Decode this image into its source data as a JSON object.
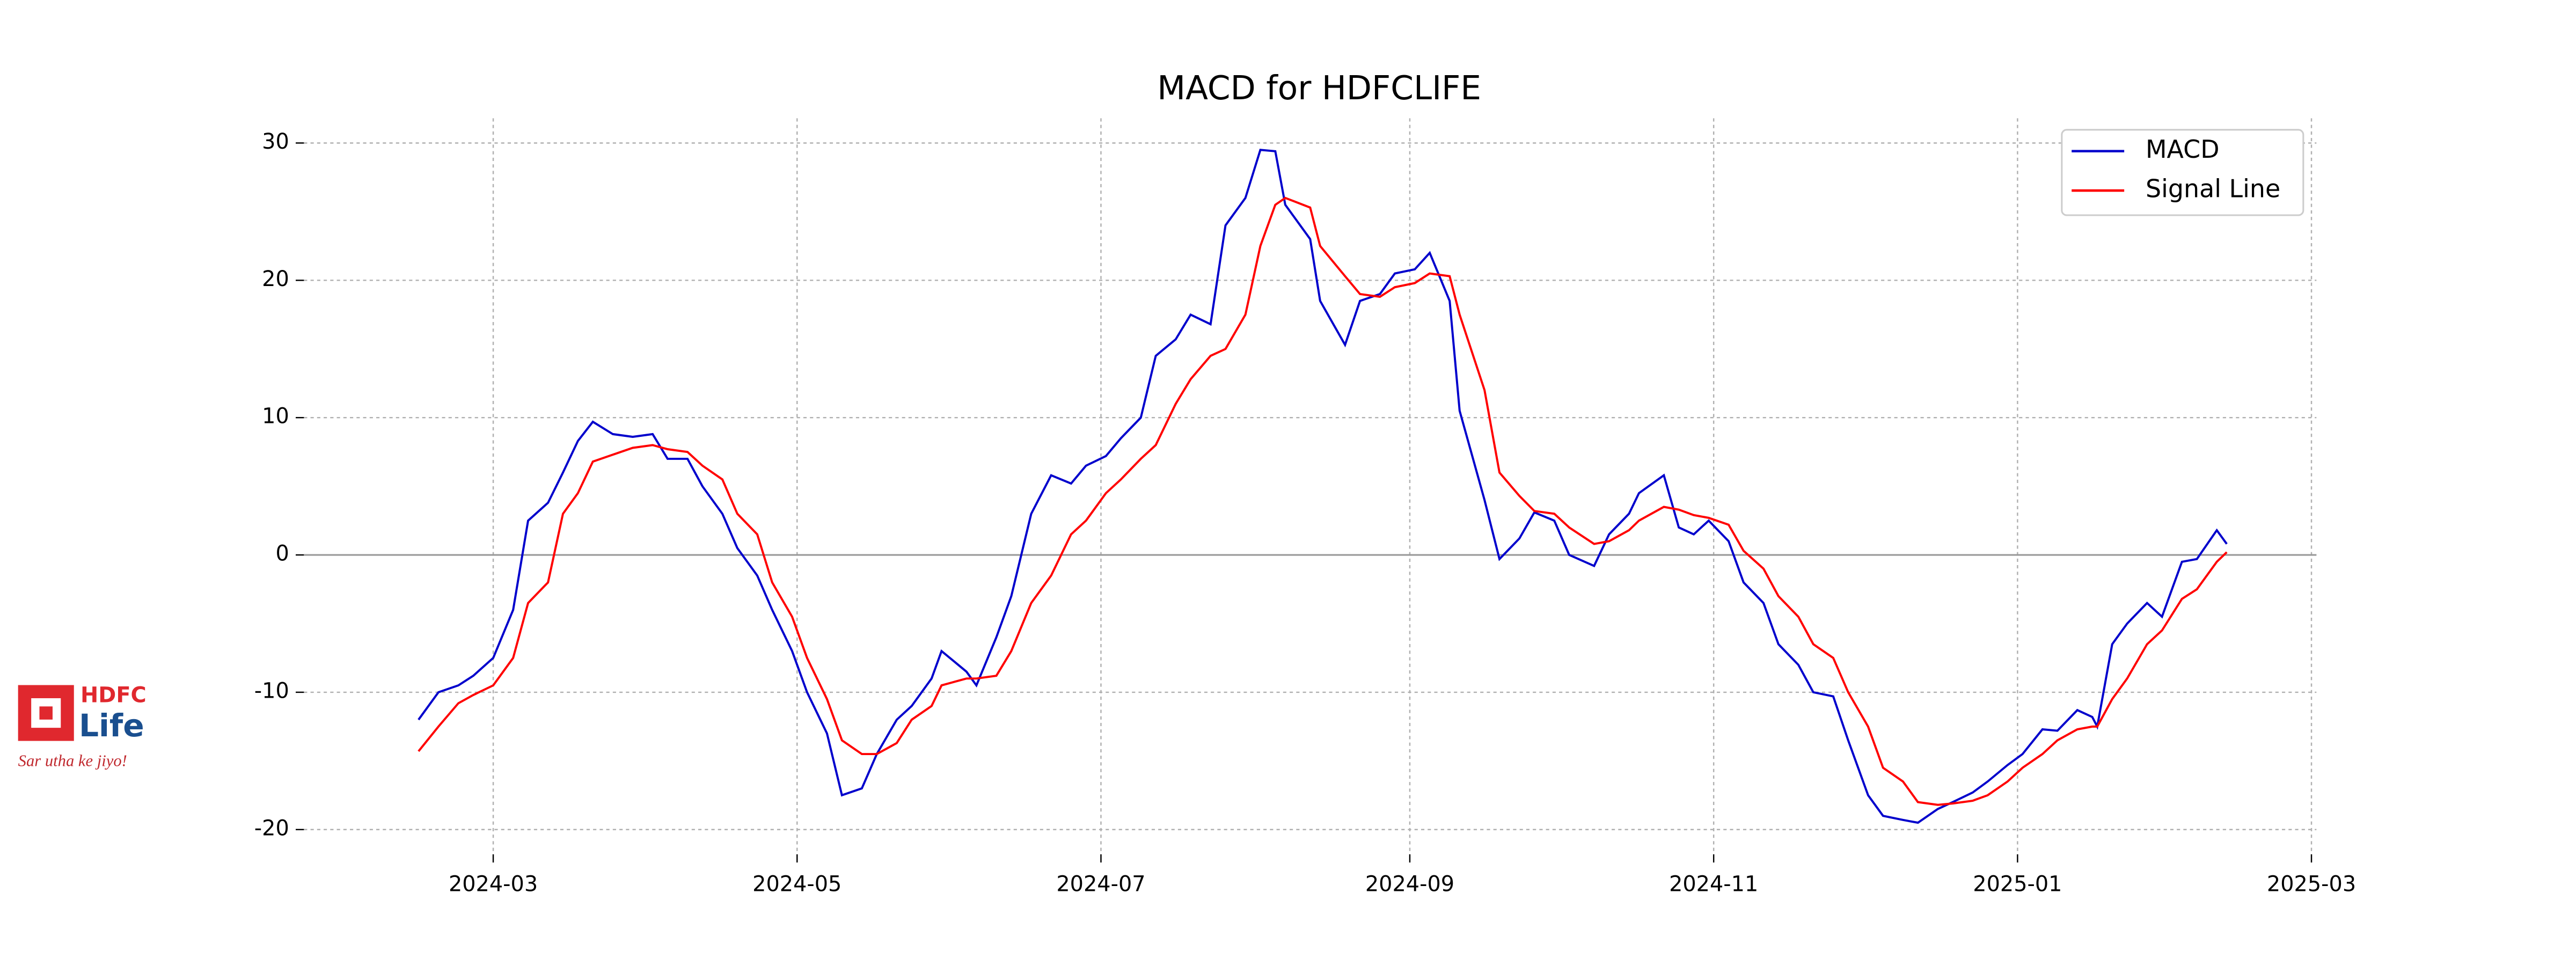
{
  "chart_data": {
    "type": "line",
    "title": "MACD for HDFCLIFE",
    "x": [
      "2024-02-15",
      "2024-02-19",
      "2024-02-23",
      "2024-02-26",
      "2024-03-01",
      "2024-03-05",
      "2024-03-08",
      "2024-03-12",
      "2024-03-15",
      "2024-03-18",
      "2024-03-21",
      "2024-03-25",
      "2024-03-29",
      "2024-04-02",
      "2024-04-05",
      "2024-04-09",
      "2024-04-12",
      "2024-04-16",
      "2024-04-19",
      "2024-04-23",
      "2024-04-26",
      "2024-04-30",
      "2024-05-03",
      "2024-05-07",
      "2024-05-10",
      "2024-05-14",
      "2024-05-17",
      "2024-05-21",
      "2024-05-24",
      "2024-05-28",
      "2024-05-30",
      "2024-06-04",
      "2024-06-06",
      "2024-06-10",
      "2024-06-13",
      "2024-06-17",
      "2024-06-21",
      "2024-06-25",
      "2024-06-28",
      "2024-07-02",
      "2024-07-05",
      "2024-07-09",
      "2024-07-12",
      "2024-07-16",
      "2024-07-19",
      "2024-07-23",
      "2024-07-26",
      "2024-07-30",
      "2024-08-02",
      "2024-08-05",
      "2024-08-07",
      "2024-08-12",
      "2024-08-14",
      "2024-08-19",
      "2024-08-22",
      "2024-08-26",
      "2024-08-29",
      "2024-09-02",
      "2024-09-05",
      "2024-09-09",
      "2024-09-11",
      "2024-09-16",
      "2024-09-19",
      "2024-09-23",
      "2024-09-26",
      "2024-09-30",
      "2024-10-03",
      "2024-10-08",
      "2024-10-11",
      "2024-10-15",
      "2024-10-17",
      "2024-10-22",
      "2024-10-25",
      "2024-10-28",
      "2024-10-31",
      "2024-11-04",
      "2024-11-07",
      "2024-11-11",
      "2024-11-14",
      "2024-11-18",
      "2024-11-21",
      "2024-11-25",
      "2024-11-28",
      "2024-12-02",
      "2024-12-05",
      "2024-12-09",
      "2024-12-12",
      "2024-12-16",
      "2024-12-19",
      "2024-12-23",
      "2024-12-26",
      "2024-12-30",
      "2025-01-02",
      "2025-01-06",
      "2025-01-09",
      "2025-01-13",
      "2025-01-16",
      "2025-01-17",
      "2025-01-20",
      "2025-01-23",
      "2025-01-27",
      "2025-01-30",
      "2025-02-03",
      "2025-02-06",
      "2025-02-10",
      "2025-02-12"
    ],
    "series": [
      {
        "name": "MACD",
        "color": "#0000cc",
        "values": [
          -12,
          -10,
          -9.5,
          -8.8,
          -7.5,
          -4,
          2.5,
          3.8,
          6,
          8.3,
          9.7,
          8.8,
          8.6,
          8.8,
          7,
          7,
          5,
          3,
          0.5,
          -1.5,
          -4,
          -7,
          -10,
          -13,
          -17.5,
          -17,
          -14.5,
          -12,
          -11,
          -9,
          -7,
          -8.5,
          -9.5,
          -6,
          -3,
          3,
          5.8,
          5.2,
          6.5,
          7.2,
          8.5,
          10,
          14.5,
          15.7,
          17.5,
          16.8,
          24,
          26,
          29.5,
          29.4,
          25.5,
          23,
          18.5,
          15.3,
          18.5,
          19,
          20.5,
          20.8,
          22,
          18.5,
          10.5,
          4,
          -0.3,
          1.2,
          3.1,
          2.5,
          0,
          -0.8,
          1.5,
          3,
          4.5,
          5.8,
          2,
          1.5,
          2.5,
          1,
          -2,
          -3.5,
          -6.5,
          -8,
          -10,
          -10.3,
          -13.5,
          -17.5,
          -19,
          -19.3,
          -19.5,
          -18.5,
          -18,
          -17.3,
          -16.5,
          -15.3,
          -14.5,
          -12.7,
          -12.8,
          -11.3,
          -11.8,
          -12.5,
          -6.5,
          -5,
          -3.5,
          -4.5,
          -0.5,
          -0.3,
          1.8,
          0.8
        ]
      },
      {
        "name": "Signal Line",
        "color": "#ff0000",
        "values": [
          -14.3,
          -12.5,
          -10.8,
          -10.2,
          -9.5,
          -7.5,
          -3.5,
          -2,
          3,
          4.5,
          6.8,
          7.3,
          7.8,
          8,
          7.7,
          7.5,
          6.5,
          5.5,
          3,
          1.5,
          -2,
          -4.5,
          -7.5,
          -10.5,
          -13.5,
          -14.5,
          -14.5,
          -13.7,
          -12,
          -11,
          -9.5,
          -9,
          -9,
          -8.8,
          -7,
          -3.5,
          -1.5,
          1.5,
          2.5,
          4.5,
          5.5,
          7,
          8,
          11,
          12.8,
          14.5,
          15,
          17.5,
          22.5,
          25.5,
          26,
          25.3,
          22.5,
          20.3,
          19,
          18.8,
          19.5,
          19.8,
          20.5,
          20.3,
          17.5,
          12,
          6,
          4.3,
          3.2,
          3,
          2,
          0.8,
          1,
          1.8,
          2.5,
          3.5,
          3.3,
          2.9,
          2.7,
          2.2,
          0.3,
          -1,
          -3,
          -4.5,
          -6.5,
          -7.5,
          -10,
          -12.5,
          -15.5,
          -16.5,
          -18,
          -18.2,
          -18.1,
          -17.9,
          -17.5,
          -16.5,
          -15.5,
          -14.5,
          -13.5,
          -12.7,
          -12.5,
          -12.5,
          -10.5,
          -9,
          -6.5,
          -5.5,
          -3.2,
          -2.5,
          -0.5,
          0.2
        ]
      }
    ],
    "reference_line": 0,
    "xlim": [
      "2024-01-23",
      "2025-03-02"
    ],
    "xticks": [
      "2024-03",
      "2024-05",
      "2024-07",
      "2024-09",
      "2024-11",
      "2025-01",
      "2025-03"
    ],
    "ylim": [
      -21.8,
      31.8
    ],
    "yticks": [
      -20,
      -10,
      0,
      10,
      20,
      30
    ],
    "grid": true,
    "legend": "upper right"
  },
  "logo": {
    "brand": "HDFC",
    "product": "Life",
    "tagline": "Sar utha ke jiyo!"
  }
}
